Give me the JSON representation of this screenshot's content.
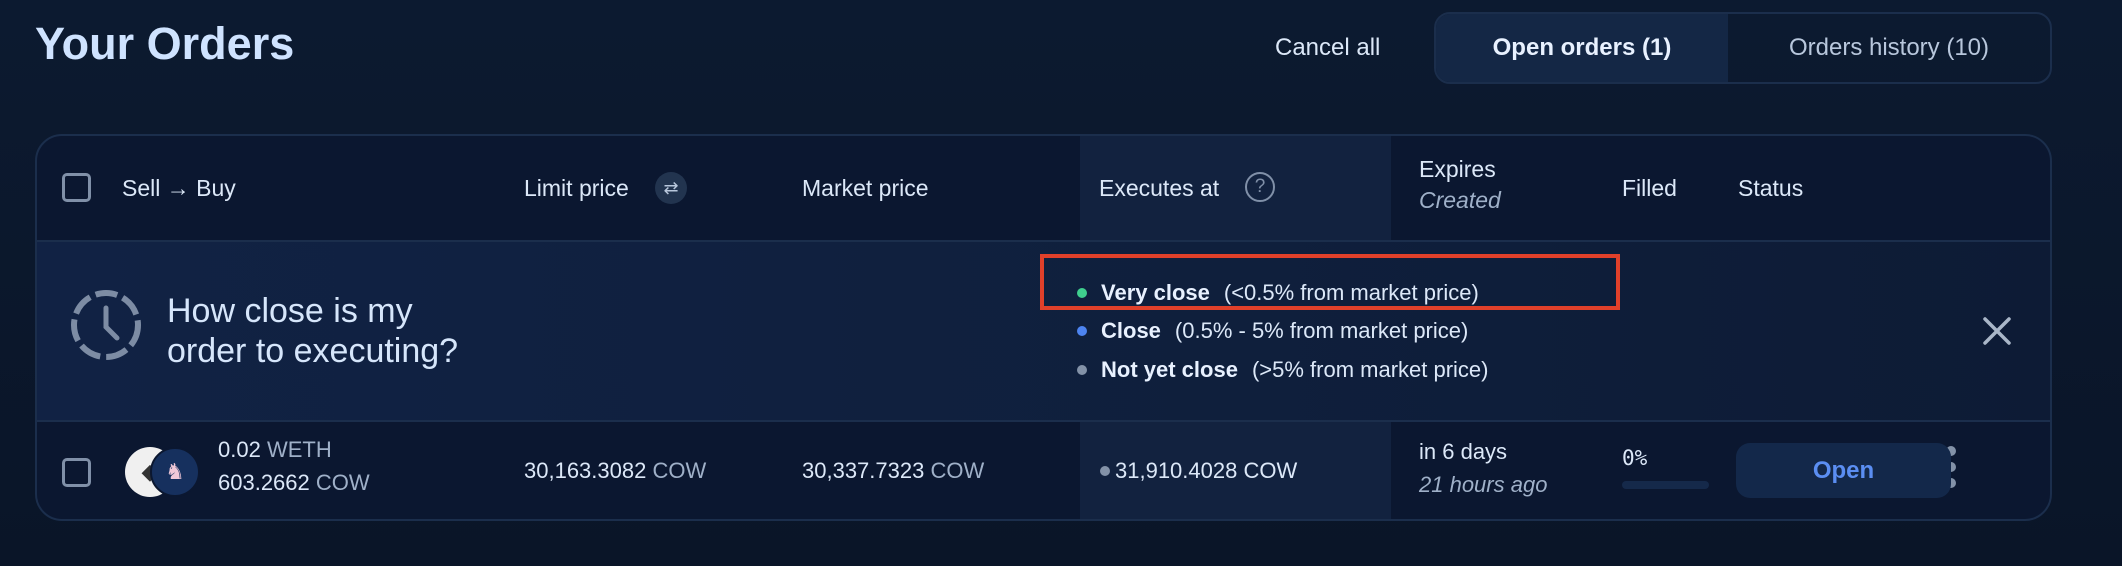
{
  "header": {
    "title": "Your Orders",
    "cancel_all": "Cancel all",
    "tabs": [
      {
        "label": "Open orders (1)",
        "active": true
      },
      {
        "label": "Orders history (10)",
        "active": false
      }
    ]
  },
  "table": {
    "columns": {
      "sell_buy": "Sell → Buy",
      "limit_price": "Limit price",
      "market_price": "Market price",
      "executes_at": "Executes at",
      "expires": "Expires",
      "created": "Created",
      "filled": "Filled",
      "status": "Status"
    },
    "info_banner": {
      "title_line1": "How close is my",
      "title_line2": "order to executing?",
      "legend": [
        {
          "label": "Very close",
          "desc": "(<0.5% from market price)",
          "color": "#3fcf8e"
        },
        {
          "label": "Close",
          "desc": "(0.5% - 5% from market price)",
          "color": "#4d84f0"
        },
        {
          "label": "Not yet close",
          "desc": "(>5% from market price)",
          "color": "#8392a8"
        }
      ]
    },
    "rows": [
      {
        "sell_amount": "0.02",
        "sell_token": "WETH",
        "buy_amount": "603.2662",
        "buy_token": "COW",
        "limit_price": "30,163.3082",
        "limit_unit": "COW",
        "market_price": "30,337.7323",
        "market_unit": "COW",
        "executes_at": "31,910.4028 COW",
        "expires": "in 6 days",
        "created": "21 hours ago",
        "filled": "0%",
        "filled_fraction": 0,
        "status": "Open"
      }
    ]
  },
  "colors": {
    "highlight": "#e0402a",
    "status_open": "#5b8ef2"
  }
}
